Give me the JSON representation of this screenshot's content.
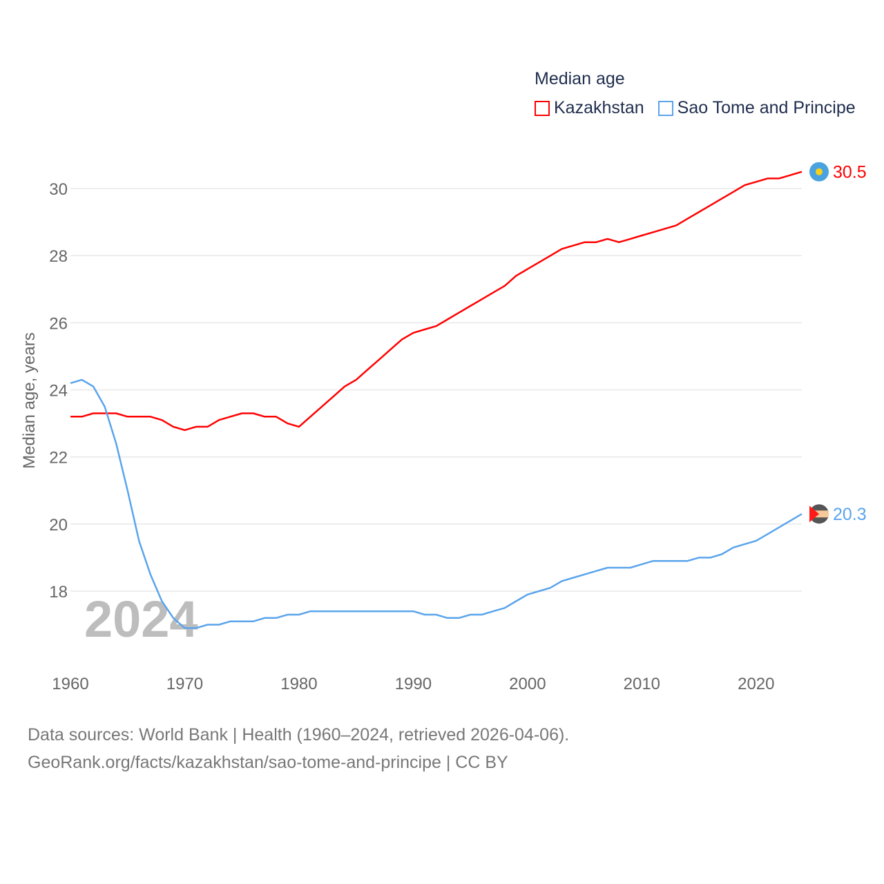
{
  "chart_data": {
    "type": "line",
    "legend_title": "Median age",
    "ylabel": "Median age, years",
    "xlabel": "",
    "year_watermark": "2024",
    "xlim": [
      1960,
      2024
    ],
    "ylim": [
      16.3,
      30.5
    ],
    "x_ticks": [
      "1960",
      "1970",
      "1980",
      "1990",
      "2000",
      "2010",
      "2020"
    ],
    "y_ticks": [
      "18",
      "20",
      "22",
      "24",
      "26",
      "28",
      "30"
    ],
    "grid": true,
    "legend_position": "top-right",
    "x": [
      1960,
      1961,
      1962,
      1963,
      1964,
      1965,
      1966,
      1967,
      1968,
      1969,
      1970,
      1971,
      1972,
      1973,
      1974,
      1975,
      1976,
      1977,
      1978,
      1979,
      1980,
      1981,
      1982,
      1983,
      1984,
      1985,
      1986,
      1987,
      1988,
      1989,
      1990,
      1991,
      1992,
      1993,
      1994,
      1995,
      1996,
      1997,
      1998,
      1999,
      2000,
      2001,
      2002,
      2003,
      2004,
      2005,
      2006,
      2007,
      2008,
      2009,
      2010,
      2011,
      2012,
      2013,
      2014,
      2015,
      2016,
      2017,
      2018,
      2019,
      2020,
      2021,
      2022,
      2023,
      2024
    ],
    "series": [
      {
        "name": "Kazakhstan",
        "color": "#ff0000",
        "end_label": "30.5",
        "values": [
          23.2,
          23.2,
          23.3,
          23.3,
          23.3,
          23.2,
          23.2,
          23.2,
          23.1,
          22.9,
          22.8,
          22.9,
          22.9,
          23.1,
          23.2,
          23.3,
          23.3,
          23.2,
          23.2,
          23.0,
          22.9,
          23.2,
          23.5,
          23.8,
          24.1,
          24.3,
          24.6,
          24.9,
          25.2,
          25.5,
          25.7,
          25.8,
          25.9,
          26.1,
          26.3,
          26.5,
          26.7,
          26.9,
          27.1,
          27.4,
          27.6,
          27.8,
          28.0,
          28.2,
          28.3,
          28.4,
          28.4,
          28.5,
          28.4,
          28.5,
          28.6,
          28.7,
          28.8,
          28.9,
          29.1,
          29.3,
          29.5,
          29.7,
          29.9,
          30.1,
          30.2,
          30.3,
          30.3,
          30.4,
          30.5
        ]
      },
      {
        "name": "Sao Tome and Principe",
        "color": "#5aa4ec",
        "end_label": "20.3",
        "values": [
          24.2,
          24.3,
          24.1,
          23.5,
          22.4,
          21.0,
          19.5,
          18.5,
          17.7,
          17.2,
          16.9,
          16.9,
          17.0,
          17.0,
          17.1,
          17.1,
          17.1,
          17.2,
          17.2,
          17.3,
          17.3,
          17.4,
          17.4,
          17.4,
          17.4,
          17.4,
          17.4,
          17.4,
          17.4,
          17.4,
          17.4,
          17.3,
          17.3,
          17.2,
          17.2,
          17.3,
          17.3,
          17.4,
          17.5,
          17.7,
          17.9,
          18.0,
          18.1,
          18.3,
          18.4,
          18.5,
          18.6,
          18.7,
          18.7,
          18.7,
          18.8,
          18.9,
          18.9,
          18.9,
          18.9,
          19.0,
          19.0,
          19.1,
          19.3,
          19.4,
          19.5,
          19.7,
          19.9,
          20.1,
          20.3
        ]
      }
    ]
  },
  "source": {
    "line1": "Data sources: World Bank | Health (1960–2024, retrieved 2026-04-06).",
    "line2": "GeoRank.org/facts/kazakhstan/sao-tome-and-principe | CC BY"
  }
}
